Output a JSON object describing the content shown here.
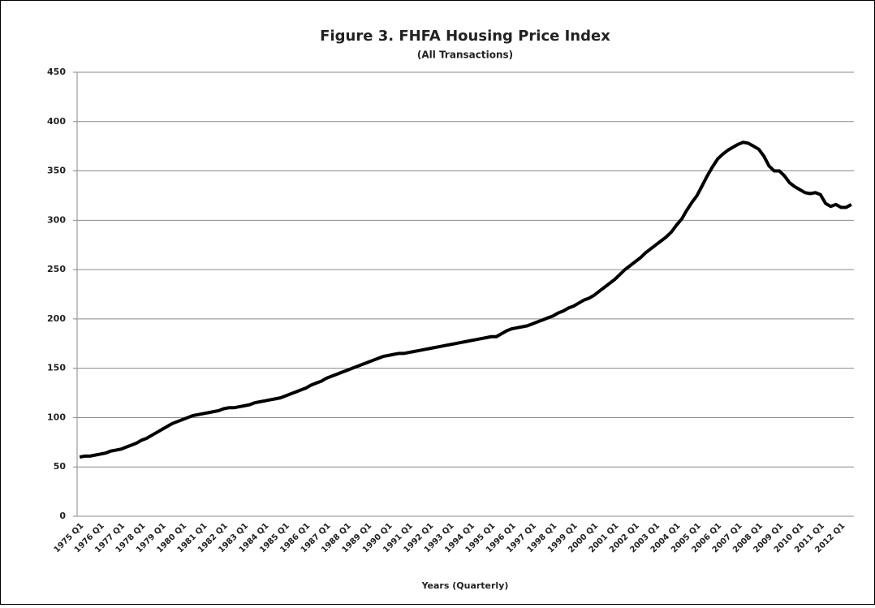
{
  "chart_data": {
    "type": "line",
    "title": "Figure 3. FHFA Housing Price Index",
    "subtitle": "(All Transactions)",
    "x_label": "Years (Quarterly)",
    "categories": [
      "1975 Q1",
      null,
      null,
      null,
      "1976 Q1",
      null,
      null,
      null,
      "1977 Q1",
      null,
      null,
      null,
      "1978 Q1",
      null,
      null,
      null,
      "1979 Q1",
      null,
      null,
      null,
      "1980 Q1",
      null,
      null,
      null,
      "1981 Q1",
      null,
      null,
      null,
      "1982 Q1",
      null,
      null,
      null,
      "1983 Q1",
      null,
      null,
      null,
      "1984 Q1",
      null,
      null,
      null,
      "1985 Q1",
      null,
      null,
      null,
      "1986 Q1",
      null,
      null,
      null,
      "1987 Q1",
      null,
      null,
      null,
      "1988 Q1",
      null,
      null,
      null,
      "1989 Q1",
      null,
      null,
      null,
      "1990 Q1",
      null,
      null,
      null,
      "1991 Q1",
      null,
      null,
      null,
      "1992 Q1",
      null,
      null,
      null,
      "1993 Q1",
      null,
      null,
      null,
      "1994 Q1",
      null,
      null,
      null,
      "1995 Q1",
      null,
      null,
      null,
      "1996 Q1",
      null,
      null,
      null,
      "1997 Q1",
      null,
      null,
      null,
      "1998 Q1",
      null,
      null,
      null,
      "1999 Q1",
      null,
      null,
      null,
      "2000 Q1",
      null,
      null,
      null,
      "2001 Q1",
      null,
      null,
      null,
      "2002 Q1",
      null,
      null,
      null,
      "2003 Q1",
      null,
      null,
      null,
      "2004 Q1",
      null,
      null,
      null,
      "2005 Q1",
      null,
      null,
      null,
      "2006 Q1",
      null,
      null,
      null,
      "2007 Q1",
      null,
      null,
      null,
      "2008 Q1",
      null,
      null,
      null,
      "2009 Q1",
      null,
      null,
      null,
      "2010 Q1",
      null,
      null,
      null,
      "2011 Q1",
      null,
      null,
      null,
      "2012 Q1",
      null,
      null
    ],
    "values": [
      60,
      61,
      61,
      62,
      63,
      64,
      66,
      67,
      68,
      70,
      72,
      74,
      77,
      79,
      82,
      85,
      88,
      91,
      94,
      96,
      98,
      100,
      102,
      103,
      104,
      105,
      106,
      107,
      109,
      110,
      110,
      111,
      112,
      113,
      115,
      116,
      117,
      118,
      119,
      120,
      122,
      124,
      126,
      128,
      130,
      133,
      135,
      137,
      140,
      142,
      144,
      146,
      148,
      150,
      152,
      154,
      156,
      158,
      160,
      162,
      163,
      164,
      165,
      165,
      166,
      167,
      168,
      169,
      170,
      171,
      172,
      173,
      174,
      175,
      176,
      177,
      178,
      179,
      180,
      181,
      182,
      182,
      185,
      188,
      190,
      191,
      192,
      193,
      195,
      197,
      199,
      201,
      203,
      206,
      208,
      211,
      213,
      216,
      219,
      221,
      224,
      228,
      232,
      236,
      240,
      245,
      250,
      254,
      258,
      262,
      267,
      271,
      275,
      279,
      283,
      288,
      295,
      301,
      310,
      318,
      325,
      335,
      345,
      354,
      362,
      367,
      371,
      374,
      377,
      379,
      378,
      375,
      372,
      365,
      355,
      350,
      350,
      345,
      338,
      334,
      331,
      328,
      327,
      328,
      326,
      317,
      314,
      316,
      313,
      313,
      316
    ],
    "color": "#000000",
    "ylim": [
      0,
      450
    ],
    "yticks": [
      0,
      50,
      100,
      150,
      200,
      250,
      300,
      350,
      400,
      450
    ],
    "grid": true
  }
}
